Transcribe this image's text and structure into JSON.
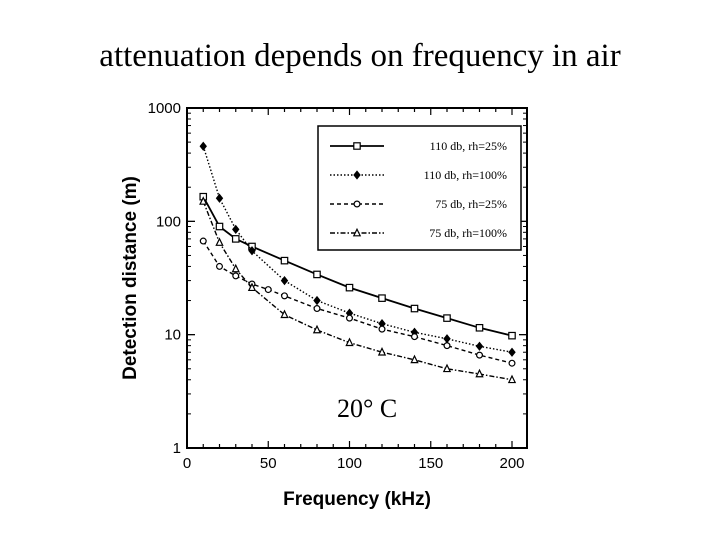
{
  "slide": {
    "title": "attenuation depends on frequency in air"
  },
  "colors": {
    "ink": "#000000",
    "background": "#ffffff"
  },
  "chart_data": {
    "type": "line",
    "title": "",
    "xlabel": "Frequency (kHz)",
    "ylabel": "Detection distance (m)",
    "xlim": [
      0,
      200
    ],
    "ylim": [
      1,
      1000
    ],
    "yscale": "log",
    "xticks": [
      0,
      50,
      100,
      150,
      200
    ],
    "yticks": [
      1,
      10,
      100,
      1000
    ],
    "annotation": "20° C",
    "legend_position": "top-right",
    "series": [
      {
        "name": "110 db, rh=25%",
        "marker": "square",
        "dash": "solid",
        "x": [
          10,
          20,
          30,
          40,
          60,
          80,
          100,
          120,
          140,
          160,
          180,
          200
        ],
        "y": [
          165,
          90,
          70,
          60,
          45,
          34,
          26,
          21,
          17,
          14,
          11.5,
          9.8
        ]
      },
      {
        "name": "110 db, rh=100%",
        "marker": "diamond",
        "dash": "dotted",
        "x": [
          10,
          20,
          30,
          40,
          60,
          80,
          100,
          120,
          140,
          160,
          180,
          200
        ],
        "y": [
          460,
          160,
          85,
          55,
          30,
          20,
          15.5,
          12.5,
          10.5,
          9.2,
          7.9,
          7.0
        ]
      },
      {
        "name": "75 db, rh=25%",
        "marker": "circle",
        "dash": "dashed",
        "x": [
          10,
          20,
          30,
          40,
          50,
          60,
          80,
          100,
          120,
          140,
          160,
          180,
          200
        ],
        "y": [
          67,
          40,
          33,
          28,
          25,
          22,
          17,
          14,
          11.2,
          9.6,
          8.0,
          6.6,
          5.6
        ]
      },
      {
        "name": "75 db, rh=100%",
        "marker": "triangle",
        "dash": "dashdot",
        "x": [
          10,
          20,
          30,
          40,
          60,
          80,
          100,
          120,
          140,
          160,
          180,
          200
        ],
        "y": [
          150,
          65,
          38,
          26,
          15,
          11,
          8.5,
          7.0,
          6.0,
          5.0,
          4.5,
          4.0
        ]
      }
    ]
  }
}
